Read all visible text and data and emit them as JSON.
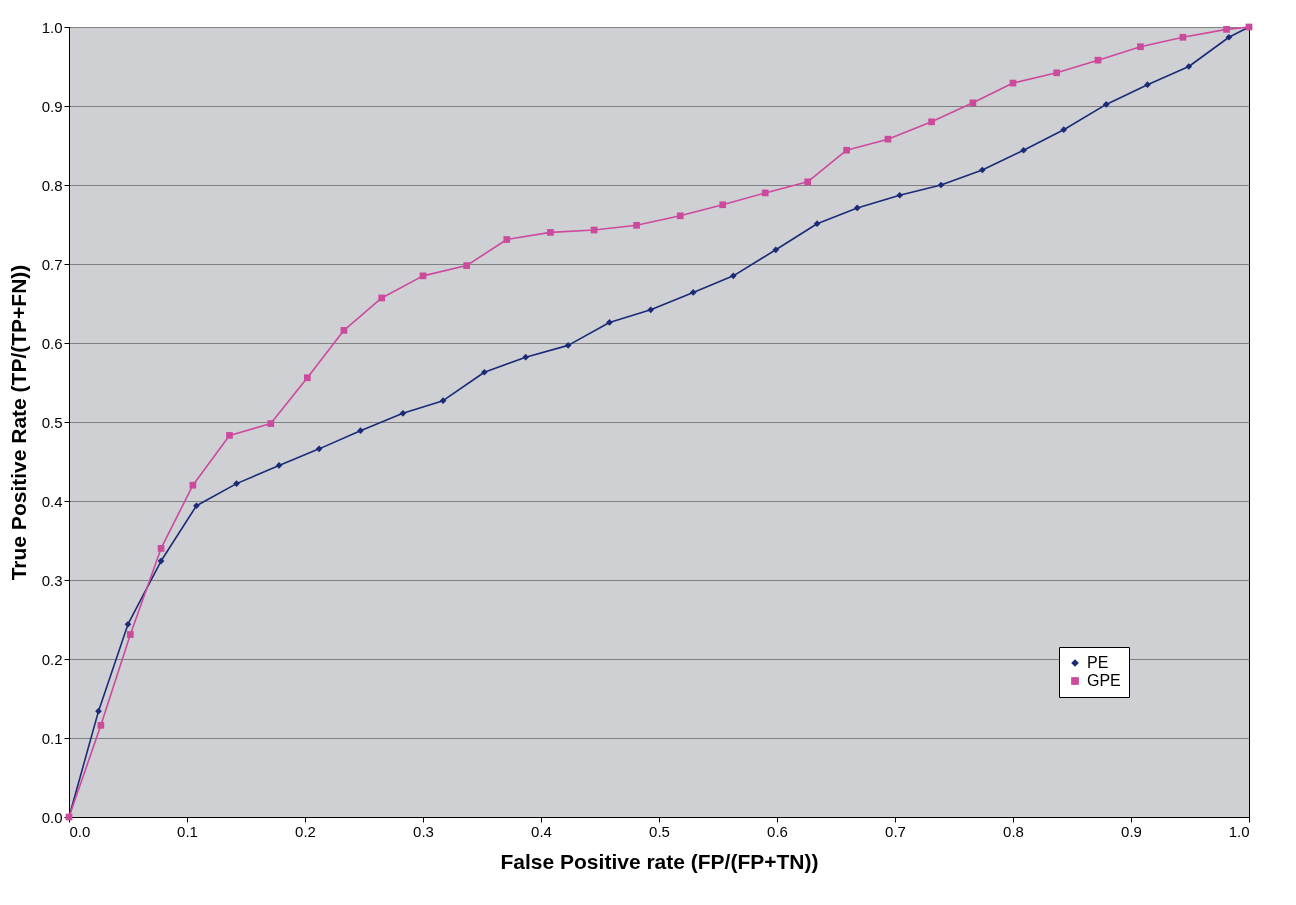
{
  "chart_data": {
    "type": "line",
    "xlabel": "False Positive rate (FP/(FP+TN))",
    "ylabel": "True Positive Rate (TP/(TP+FN))",
    "xlim": [
      0,
      1
    ],
    "ylim": [
      0,
      1
    ],
    "xticks": [
      {
        "value": 0,
        "label": "0.0"
      },
      {
        "value": 0.1,
        "label": "0.1"
      },
      {
        "value": 0.2,
        "label": "0.2"
      },
      {
        "value": 0.3,
        "label": "0.3"
      },
      {
        "value": 0.4,
        "label": "0.4"
      },
      {
        "value": 0.5,
        "label": "0.5"
      },
      {
        "value": 0.6,
        "label": "0.6"
      },
      {
        "value": 0.7,
        "label": "0.7"
      },
      {
        "value": 0.8,
        "label": "0.8"
      },
      {
        "value": 0.9,
        "label": "0.9"
      },
      {
        "value": 1,
        "label": "1.0"
      }
    ],
    "yticks": [
      {
        "value": 0,
        "label": "0.0"
      },
      {
        "value": 0.1,
        "label": "0.1"
      },
      {
        "value": 0.2,
        "label": "0.2"
      },
      {
        "value": 0.3,
        "label": "0.3"
      },
      {
        "value": 0.4,
        "label": "0.4"
      },
      {
        "value": 0.5,
        "label": "0.5"
      },
      {
        "value": 0.6,
        "label": "0.6"
      },
      {
        "value": 0.7,
        "label": "0.7"
      },
      {
        "value": 0.8,
        "label": "0.8"
      },
      {
        "value": 0.9,
        "label": "0.9"
      },
      {
        "value": 1,
        "label": "1.0"
      }
    ],
    "grid": "y",
    "legend": "bottom right",
    "line_style": "solid",
    "series": [
      {
        "name": "PE",
        "color": "#1c2a78",
        "marker": "diamond",
        "x": [
          0,
          0.025,
          0.05,
          0.078,
          0.108,
          0.142,
          0.178,
          0.212,
          0.247,
          0.283,
          0.317,
          0.352,
          0.387,
          0.423,
          0.458,
          0.493,
          0.529,
          0.563,
          0.599,
          0.634,
          0.668,
          0.704,
          0.739,
          0.774,
          0.809,
          0.843,
          0.879,
          0.914,
          0.949,
          0.983,
          1.0
        ],
        "values": [
          0,
          0.134,
          0.244,
          0.324,
          0.394,
          0.422,
          0.445,
          0.466,
          0.489,
          0.511,
          0.527,
          0.563,
          0.582,
          0.597,
          0.626,
          0.642,
          0.664,
          0.685,
          0.718,
          0.751,
          0.771,
          0.787,
          0.8,
          0.819,
          0.844,
          0.87,
          0.902,
          0.927,
          0.95,
          0.987,
          1.0
        ]
      },
      {
        "name": "GPE",
        "color": "#cc4a9c",
        "marker": "square",
        "x": [
          0,
          0.027,
          0.052,
          0.078,
          0.105,
          0.136,
          0.171,
          0.202,
          0.233,
          0.265,
          0.3,
          0.337,
          0.371,
          0.408,
          0.445,
          0.481,
          0.518,
          0.554,
          0.59,
          0.626,
          0.659,
          0.694,
          0.731,
          0.766,
          0.8,
          0.837,
          0.872,
          0.908,
          0.944,
          0.981,
          1.0
        ],
        "values": [
          0,
          0.116,
          0.231,
          0.34,
          0.42,
          0.483,
          0.498,
          0.556,
          0.616,
          0.657,
          0.685,
          0.698,
          0.731,
          0.74,
          0.743,
          0.749,
          0.761,
          0.775,
          0.79,
          0.804,
          0.844,
          0.858,
          0.88,
          0.904,
          0.929,
          0.942,
          0.958,
          0.975,
          0.987,
          0.997,
          1.0
        ]
      }
    ]
  }
}
